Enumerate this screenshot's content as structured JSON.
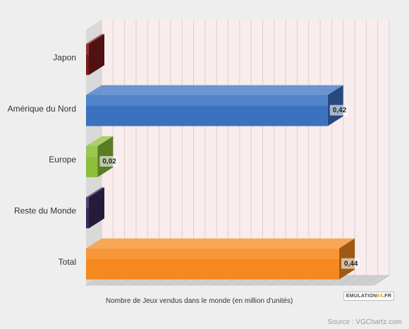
{
  "chart_data": {
    "type": "bar",
    "orientation": "horizontal",
    "style": "3d",
    "categories": [
      "Japon",
      "Amérique du Nord",
      "Europe",
      "Reste du Monde",
      "Total"
    ],
    "values": [
      0,
      0.42,
      0.02,
      0,
      0.44
    ],
    "value_labels": [
      "",
      "0,42",
      "0,02",
      "",
      "0,44"
    ],
    "colors": [
      "#7a1a1a",
      "#3a72c0",
      "#8cbf3a",
      "#3a2a5a",
      "#f5891f"
    ],
    "xlabel": "Nombre de Jeux vendus dans le monde (en million d'unités)",
    "ylabel": "",
    "xlim": [
      0,
      0.5
    ],
    "grid": true,
    "legend": "none",
    "background": "#f9ecec",
    "gridline_color": "#d9d0d0"
  },
  "watermark": {
    "logo_text_a": "EMULATION",
    "logo_text_b": "64",
    "logo_text_c": ".FR"
  },
  "source_text": "Source : VGChartz.com"
}
